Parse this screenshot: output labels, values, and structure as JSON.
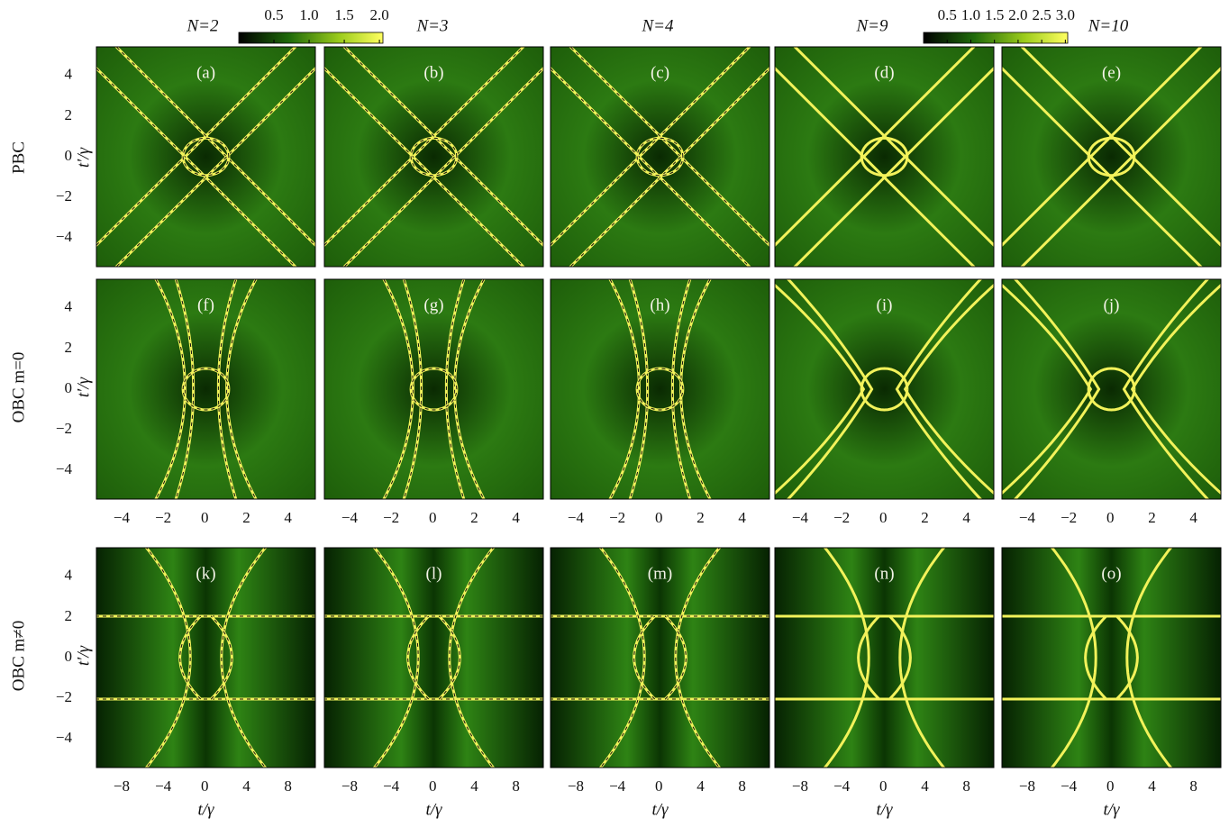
{
  "columns": [
    "N=2",
    "N=3",
    "N=4",
    "N=9",
    "N=10"
  ],
  "rows": [
    "PBC",
    "OBC m=0",
    "OBC m≠0"
  ],
  "panels": [
    "(a)",
    "(b)",
    "(c)",
    "(d)",
    "(e)",
    "(f)",
    "(g)",
    "(h)",
    "(i)",
    "(j)",
    "(k)",
    "(l)",
    "(m)",
    "(n)",
    "(o)"
  ],
  "y_axis_label": "t′/γ",
  "x_axis_label": "t/γ",
  "y_ticks": [
    "4",
    "2",
    "0",
    "−2",
    "−4"
  ],
  "x_ticks_middle": [
    "−4",
    "−2",
    "0",
    "2",
    "4"
  ],
  "x_ticks_bottom": [
    "−8",
    "−4",
    "0",
    "4",
    "8"
  ],
  "colorbar_left": [
    "0.5",
    "1.0",
    "1.5",
    "2.0"
  ],
  "colorbar_right": [
    "0.5",
    "1.0",
    "1.5",
    "2.0",
    "2.5",
    "3.0"
  ]
}
